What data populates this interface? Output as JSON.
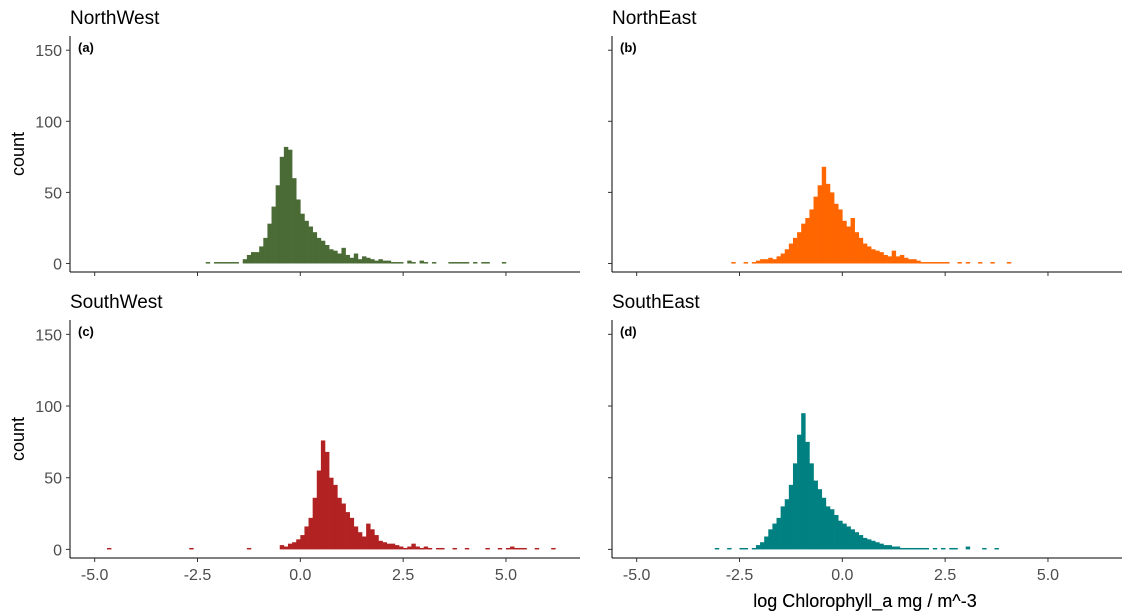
{
  "chart_data": [
    {
      "type": "bar",
      "title": "NorthWest",
      "tag": "(a)",
      "color": "#4a6b35",
      "xlabel": "",
      "ylabel": "count",
      "xlim": [
        -5.6,
        6.8
      ],
      "ylim": [
        -6,
        160
      ],
      "bin_width": 0.1,
      "x_ticks": [
        "-5.0",
        "-2.5",
        "0.0",
        "2.5",
        "5.0"
      ],
      "x_tick_values": [
        -5,
        -2.5,
        0,
        2.5,
        5
      ],
      "y_ticks": [
        "0",
        "50",
        "100",
        "150"
      ],
      "y_tick_values": [
        0,
        50,
        100,
        150
      ],
      "start": -2.3,
      "counts": [
        1,
        0,
        1,
        1,
        1,
        1,
        1,
        1,
        0,
        3,
        6,
        8,
        8,
        12,
        18,
        28,
        40,
        55,
        75,
        82,
        80,
        60,
        45,
        35,
        30,
        26,
        22,
        18,
        16,
        13,
        10,
        9,
        7,
        11,
        6,
        4,
        7,
        3,
        5,
        4,
        3,
        2,
        3,
        2,
        2,
        1,
        1,
        1,
        0,
        2,
        1,
        0,
        2,
        1,
        0,
        1,
        0,
        0,
        0,
        1,
        1,
        1,
        1,
        1,
        0,
        1,
        0,
        1,
        1,
        0,
        0,
        0,
        1
      ]
    },
    {
      "type": "bar",
      "title": "NorthEast",
      "tag": "(b)",
      "color": "#ff6600",
      "xlabel": "log Chlorophyll_a mg / m^-3",
      "ylabel": "",
      "xlim": [
        -5.6,
        6.8
      ],
      "ylim": [
        -6,
        160
      ],
      "bin_width": 0.1,
      "x_ticks": [
        "-5.0",
        "-2.5",
        "0.0",
        "2.5",
        "5.0"
      ],
      "x_tick_values": [
        -5,
        -2.5,
        0,
        2.5,
        5
      ],
      "y_ticks": [
        "0",
        "50",
        "100",
        "150"
      ],
      "y_tick_values": [
        0,
        50,
        100,
        150
      ],
      "start": -2.7,
      "counts": [
        1,
        0,
        0,
        1,
        0,
        1,
        2,
        3,
        3,
        4,
        3,
        5,
        7,
        10,
        14,
        18,
        22,
        28,
        32,
        38,
        47,
        55,
        68,
        56,
        50,
        42,
        38,
        30,
        26,
        32,
        22,
        18,
        14,
        12,
        10,
        9,
        8,
        6,
        5,
        9,
        5,
        6,
        4,
        3,
        3,
        2,
        1,
        1,
        1,
        1,
        1,
        1,
        1,
        0,
        0,
        1,
        0,
        1,
        0,
        0,
        1,
        0,
        0,
        1,
        0,
        0,
        0,
        1
      ]
    },
    {
      "type": "bar",
      "title": "SouthWest",
      "tag": "(c)",
      "color": "#b22222",
      "xlabel": "",
      "ylabel": "count",
      "xlim": [
        -5.6,
        6.8
      ],
      "ylim": [
        -6,
        160
      ],
      "bin_width": 0.1,
      "x_ticks": [
        "-5.0",
        "-2.5",
        "0.0",
        "2.5",
        "5.0"
      ],
      "x_tick_values": [
        -5,
        -2.5,
        0,
        2.5,
        5
      ],
      "y_ticks": [
        "0",
        "50",
        "100",
        "150"
      ],
      "y_tick_values": [
        0,
        50,
        100,
        150
      ],
      "start": -4.7,
      "counts": [
        1,
        0,
        0,
        0,
        0,
        0,
        0,
        0,
        0,
        0,
        0,
        0,
        0,
        0,
        0,
        0,
        0,
        0,
        0,
        0,
        1,
        0,
        0,
        0,
        0,
        0,
        0,
        0,
        0,
        0,
        0,
        0,
        0,
        0,
        1,
        0,
        0,
        0,
        0,
        0,
        0,
        0,
        3,
        2,
        4,
        5,
        7,
        10,
        16,
        22,
        36,
        55,
        76,
        68,
        50,
        45,
        36,
        32,
        26,
        22,
        16,
        12,
        9,
        18,
        14,
        10,
        6,
        5,
        4,
        4,
        3,
        2,
        1,
        2,
        4,
        2,
        1,
        2,
        1,
        0,
        1,
        1,
        0,
        0,
        1,
        0,
        0,
        1,
        0,
        0,
        0,
        0,
        1,
        0,
        0,
        1,
        0,
        1,
        2,
        1,
        1,
        1,
        0,
        0,
        1,
        0,
        0,
        0,
        1,
        0
      ]
    },
    {
      "type": "bar",
      "title": "SouthEast",
      "tag": "(d)",
      "color": "#008080",
      "xlabel": "log Chlorophyll_a mg / m^-3",
      "ylabel": "",
      "xlim": [
        -5.6,
        6.8
      ],
      "ylim": [
        -6,
        160
      ],
      "bin_width": 0.1,
      "x_ticks": [
        "-5.0",
        "-2.5",
        "0.0",
        "2.5",
        "5.0"
      ],
      "x_tick_values": [
        -5,
        -2.5,
        0,
        2.5,
        5
      ],
      "y_ticks": [
        "0",
        "50",
        "100",
        "150"
      ],
      "y_tick_values": [
        0,
        50,
        100,
        150
      ],
      "start": -3.1,
      "counts": [
        1,
        0,
        0,
        1,
        0,
        0,
        1,
        1,
        0,
        1,
        3,
        5,
        9,
        14,
        18,
        22,
        30,
        35,
        45,
        60,
        80,
        95,
        75,
        60,
        48,
        42,
        36,
        30,
        28,
        24,
        20,
        18,
        16,
        14,
        12,
        10,
        8,
        7,
        6,
        5,
        4,
        3,
        3,
        2,
        2,
        1,
        1,
        1,
        1,
        1,
        1,
        1,
        0,
        1,
        0,
        1,
        0,
        1,
        1,
        0,
        0,
        2,
        0,
        0,
        0,
        1,
        0,
        0,
        1
      ]
    }
  ]
}
